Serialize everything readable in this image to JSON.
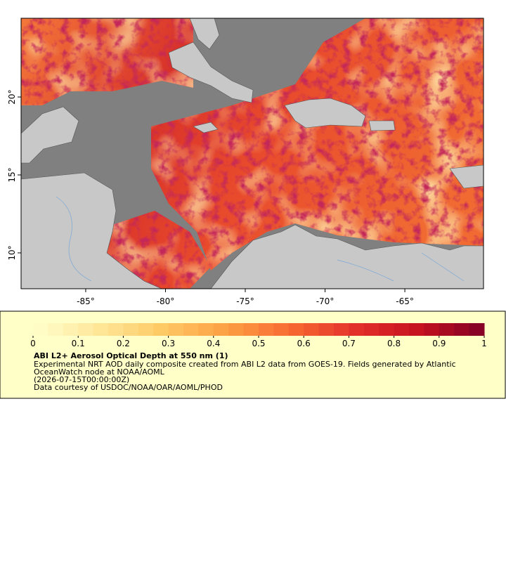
{
  "map": {
    "xlim": [
      -89.05,
      -60.07
    ],
    "ylim": [
      7.7,
      25.05
    ],
    "xticks": [
      {
        "value": -85,
        "label": "-85°"
      },
      {
        "value": -80,
        "label": "-80°"
      },
      {
        "value": -75,
        "label": "-75°"
      },
      {
        "value": -70,
        "label": "-70°"
      },
      {
        "value": -65,
        "label": "-65°"
      }
    ],
    "yticks": [
      {
        "value": 10,
        "label": "10°"
      },
      {
        "value": 15,
        "label": "15°"
      },
      {
        "value": 20,
        "label": "20°"
      }
    ]
  },
  "legend": {
    "clim": [
      0,
      1
    ],
    "ticks": [
      0,
      0.1,
      0.2,
      0.3,
      0.4,
      0.5,
      0.6,
      0.7,
      0.8,
      0.9,
      1
    ],
    "colors": [
      "#ffffcc",
      "#ffe79a",
      "#fec965",
      "#fd9f44",
      "#f86a32",
      "#e3302a",
      "#c5111f",
      "#800026"
    ],
    "title": "ABI L2+ Aerosol Optical Depth at 550 nm (1)",
    "description": [
      "Experimental NRT AOD daily composite created from ABI L2 data from GOES-19. Fields generated by Atlantic",
      "OceanWatch node at NOAA/AOML",
      "(2026-07-15T00:00:00Z)",
      "Data courtesy of USDOC/NOAA/OAR/AOML/PHOD"
    ]
  }
}
